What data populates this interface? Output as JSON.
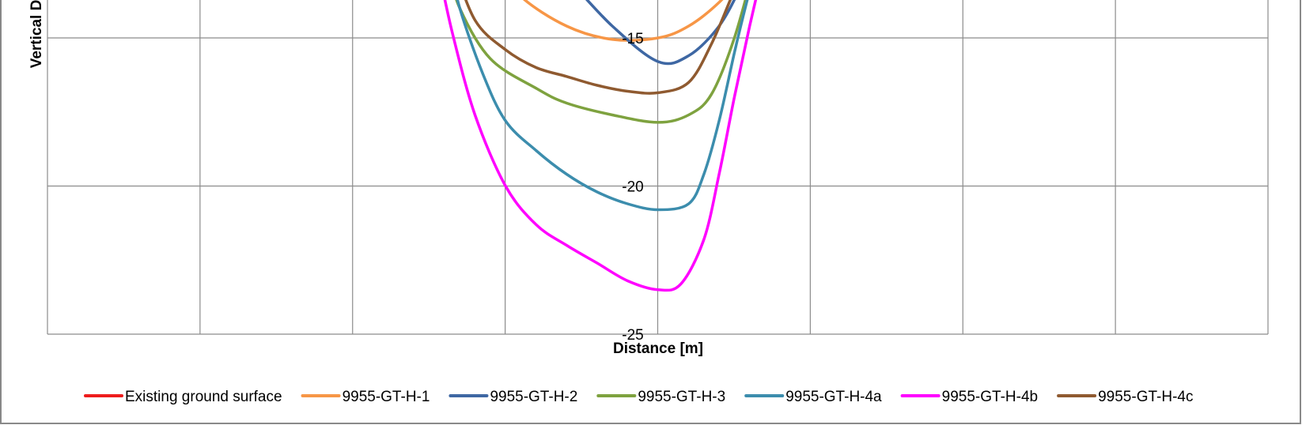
{
  "chart_data": {
    "type": "line",
    "xlabel": "Distance [m]",
    "ylabel": "Vertical Displacement",
    "ylabel_visible": "Vertical D",
    "ylim": [
      -25,
      -12.4
    ],
    "y_ticks": [
      {
        "value": -15,
        "label": "-15"
      },
      {
        "value": -20,
        "label": "-20"
      },
      {
        "value": -25,
        "label": "-25"
      }
    ],
    "x_gridline_count": 8,
    "grid": true,
    "legend_position": "bottom",
    "series": [
      {
        "name": "Existing ground surface",
        "color": "#ee1c1c",
        "x": [],
        "y": []
      },
      {
        "name": "9955-GT-H-1",
        "color": "#f79646",
        "x": [
          -1.07,
          -0.9,
          -0.6,
          -0.3,
          0,
          0.2,
          0.4,
          0.55,
          0.64
        ],
        "y": [
          -12.4,
          -13.6,
          -14.6,
          -15.05,
          -15.0,
          -14.6,
          -13.8,
          -12.9,
          -12.4
        ]
      },
      {
        "name": "9955-GT-H-2",
        "color": "#3e67a3",
        "x": [
          -0.78,
          -0.6,
          -0.3,
          0,
          0.2,
          0.4,
          0.55,
          0.63
        ],
        "y": [
          -12.4,
          -13.0,
          -14.6,
          -15.8,
          -15.6,
          -14.6,
          -13.2,
          -12.4
        ]
      },
      {
        "name": "9955-GT-H-3",
        "color": "#7ea23f",
        "x": [
          -1.39,
          -1.3,
          -1.1,
          -0.8,
          -0.6,
          -0.3,
          0,
          0.2,
          0.35,
          0.5,
          0.64
        ],
        "y": [
          -12.4,
          -14.0,
          -15.7,
          -16.7,
          -17.2,
          -17.6,
          -17.85,
          -17.6,
          -16.9,
          -15.0,
          -12.4
        ]
      },
      {
        "name": "9955-GT-H-4a",
        "color": "#3c8dad",
        "x": [
          -1.37,
          -1.3,
          -1.15,
          -1.0,
          -0.8,
          -0.6,
          -0.4,
          -0.2,
          0,
          0.2,
          0.3,
          0.4,
          0.5,
          0.58,
          0.65
        ],
        "y": [
          -12.4,
          -14.0,
          -16.2,
          -17.8,
          -18.8,
          -19.6,
          -20.2,
          -20.6,
          -20.8,
          -20.6,
          -19.6,
          -17.8,
          -15.5,
          -13.8,
          -12.4
        ]
      },
      {
        "name": "9955-GT-H-4b",
        "color": "#ff00ff",
        "x": [
          -1.45,
          -1.35,
          -1.2,
          -1.0,
          -0.8,
          -0.6,
          -0.4,
          -0.2,
          0,
          0.15,
          0.3,
          0.4,
          0.5,
          0.6,
          0.7
        ],
        "y": [
          -12.4,
          -14.8,
          -17.6,
          -20.0,
          -21.3,
          -22.0,
          -22.6,
          -23.2,
          -23.5,
          -23.3,
          -21.8,
          -19.6,
          -17.0,
          -14.6,
          -12.4
        ]
      },
      {
        "name": "9955-GT-H-4c",
        "color": "#8f5a30",
        "x": [
          -1.35,
          -1.2,
          -1.0,
          -0.8,
          -0.6,
          -0.4,
          -0.2,
          0,
          0.2,
          0.35,
          0.5,
          0.6
        ],
        "y": [
          -12.4,
          -14.4,
          -15.4,
          -16.0,
          -16.3,
          -16.6,
          -16.8,
          -16.85,
          -16.5,
          -15.2,
          -13.4,
          -12.4
        ]
      }
    ]
  }
}
